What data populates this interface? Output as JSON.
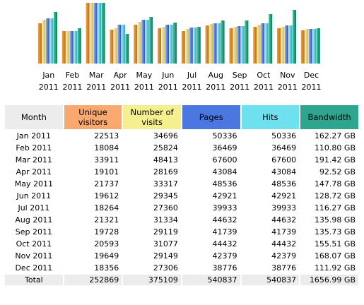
{
  "colors": {
    "month_header": "#ececec",
    "visitors": "#f9a870",
    "visits": "#f4f08f",
    "pages": "#4a78e0",
    "hits": "#6ee0ee",
    "bandwidth": "#2ea68e"
  },
  "table": {
    "headers": {
      "month": "Month",
      "visitors_1": "Unique",
      "visitors_2": "visitors",
      "visits_1": "Number of",
      "visits_2": "visits",
      "pages": "Pages",
      "hits": "Hits",
      "bandwidth": "Bandwidth"
    },
    "rows": [
      {
        "month": "Jan 2011",
        "visitors": "22513",
        "visits": "34696",
        "pages": "50336",
        "hits": "50336",
        "bandwidth": "162.27 GB"
      },
      {
        "month": "Feb 2011",
        "visitors": "18084",
        "visits": "25824",
        "pages": "36469",
        "hits": "36469",
        "bandwidth": "110.80 GB"
      },
      {
        "month": "Mar 2011",
        "visitors": "33911",
        "visits": "48413",
        "pages": "67600",
        "hits": "67600",
        "bandwidth": "191.42 GB"
      },
      {
        "month": "Apr 2011",
        "visitors": "19101",
        "visits": "28169",
        "pages": "43084",
        "hits": "43084",
        "bandwidth": "92.52 GB"
      },
      {
        "month": "May 2011",
        "visitors": "21737",
        "visits": "33317",
        "pages": "48536",
        "hits": "48536",
        "bandwidth": "147.78 GB"
      },
      {
        "month": "Jun 2011",
        "visitors": "19612",
        "visits": "29345",
        "pages": "42921",
        "hits": "42921",
        "bandwidth": "128.72 GB"
      },
      {
        "month": "Jul 2011",
        "visitors": "18264",
        "visits": "27360",
        "pages": "39933",
        "hits": "39933",
        "bandwidth": "116.27 GB"
      },
      {
        "month": "Aug 2011",
        "visitors": "21321",
        "visits": "31334",
        "pages": "44632",
        "hits": "44632",
        "bandwidth": "135.98 GB"
      },
      {
        "month": "Sep 2011",
        "visitors": "19728",
        "visits": "29119",
        "pages": "41739",
        "hits": "41739",
        "bandwidth": "135.73 GB"
      },
      {
        "month": "Oct 2011",
        "visitors": "20593",
        "visits": "31077",
        "pages": "44432",
        "hits": "44432",
        "bandwidth": "155.51 GB"
      },
      {
        "month": "Nov 2011",
        "visitors": "19649",
        "visits": "29149",
        "pages": "42379",
        "hits": "42379",
        "bandwidth": "168.07 GB"
      },
      {
        "month": "Dec 2011",
        "visitors": "18356",
        "visits": "27306",
        "pages": "38776",
        "hits": "38776",
        "bandwidth": "111.92 GB"
      }
    ],
    "total": {
      "month": "Total",
      "visitors": "252869",
      "visits": "375109",
      "pages": "540837",
      "hits": "540837",
      "bandwidth": "1656.99 GB"
    }
  },
  "chart_data": {
    "type": "bar",
    "grid": false,
    "legend": "none",
    "categories": [
      [
        "Jan",
        "2011"
      ],
      [
        "Feb",
        "2011"
      ],
      [
        "Mar",
        "2011"
      ],
      [
        "Apr",
        "2011"
      ],
      [
        "May",
        "2011"
      ],
      [
        "Jun",
        "2011"
      ],
      [
        "Jul",
        "2011"
      ],
      [
        "Aug",
        "2011"
      ],
      [
        "Sep",
        "2011"
      ],
      [
        "Oct",
        "2011"
      ],
      [
        "Nov",
        "2011"
      ],
      [
        "Dec",
        "2011"
      ]
    ],
    "series": [
      {
        "key": "visitors",
        "gradient": [
          "#f0a040",
          "#c07010"
        ],
        "values": [
          22513,
          18084,
          33911,
          19101,
          21737,
          19612,
          18264,
          21321,
          19728,
          20593,
          19649,
          18356
        ]
      },
      {
        "key": "visits",
        "gradient": [
          "#f8f0a8",
          "#c8b860"
        ],
        "values": [
          34696,
          25824,
          48413,
          28169,
          33317,
          29345,
          27360,
          31334,
          29119,
          31077,
          29149,
          27306
        ]
      },
      {
        "key": "pages",
        "gradient": [
          "#8eb0f8",
          "#2a50c0"
        ],
        "values": [
          50336,
          36469,
          67600,
          43084,
          48536,
          42921,
          39933,
          44632,
          41739,
          44432,
          42379,
          38776
        ]
      },
      {
        "key": "hits",
        "gradient": [
          "#a8f0f8",
          "#20a8b8"
        ],
        "values": [
          50336,
          36469,
          67600,
          43084,
          48536,
          42921,
          39933,
          44632,
          41739,
          44432,
          42379,
          38776
        ]
      },
      {
        "key": "bandwidth",
        "unit": "GB",
        "gradient": [
          "#40c8a0",
          "#107858"
        ],
        "values": [
          162.27,
          110.8,
          191.42,
          92.52,
          147.78,
          128.72,
          116.27,
          135.98,
          135.73,
          155.51,
          168.07,
          111.92
        ]
      }
    ]
  }
}
